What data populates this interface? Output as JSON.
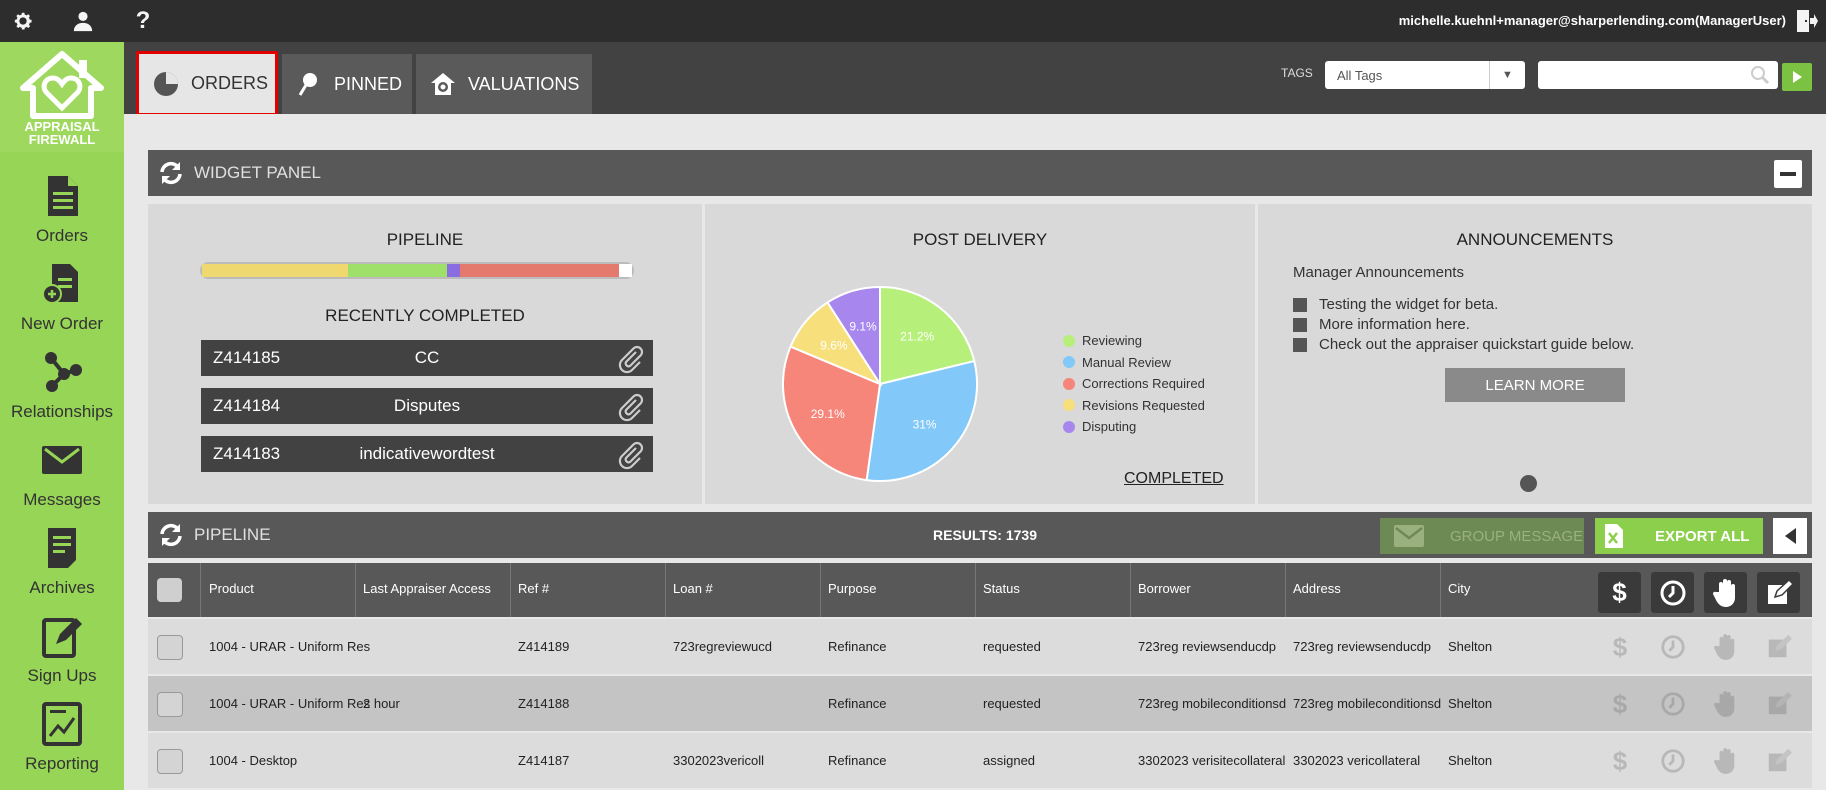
{
  "topbar": {
    "user": "michelle.kuehnl+manager@sharperlending.com(ManagerUser)",
    "icons": [
      "gear-icon",
      "user-icon",
      "help-icon",
      "logout-icon"
    ]
  },
  "logo": {
    "line1": "APPRAISAL",
    "line2": "FIREWALL"
  },
  "sidebar": {
    "items": [
      {
        "label": "Orders",
        "icon": "document-icon"
      },
      {
        "label": "New Order",
        "icon": "add-document-icon"
      },
      {
        "label": "Relationships",
        "icon": "relationships-icon"
      },
      {
        "label": "Messages",
        "icon": "envelope-icon"
      },
      {
        "label": "Archives",
        "icon": "archive-icon"
      },
      {
        "label": "Sign Ups",
        "icon": "signup-icon"
      },
      {
        "label": "Reporting",
        "icon": "chart-icon"
      }
    ]
  },
  "tabs": [
    {
      "label": "ORDERS",
      "icon": "pie-chart-icon",
      "active": true
    },
    {
      "label": "PINNED",
      "icon": "pin-icon",
      "active": false
    },
    {
      "label": "VALUATIONS",
      "icon": "house-gear-icon",
      "active": false
    }
  ],
  "filters": {
    "tags_label": "TAGS",
    "tags_value": "All Tags",
    "search_value": ""
  },
  "widget_panel": {
    "title": "WIDGET PANEL"
  },
  "pipeline_widget": {
    "title": "PIPELINE",
    "progress": [
      {
        "color": "#f0d870",
        "fraction": 0.34
      },
      {
        "color": "#9fe06a",
        "fraction": 0.23
      },
      {
        "color": "#8a6de0",
        "fraction": 0.03
      },
      {
        "color": "#e47a6d",
        "fraction": 0.37
      },
      {
        "color": "#ffffff",
        "fraction": 0.03
      }
    ],
    "recently_completed_title": "RECENTLY COMPLETED",
    "recent": [
      {
        "id": "Z414185",
        "name": "CC"
      },
      {
        "id": "Z414184",
        "name": "Disputes"
      },
      {
        "id": "Z414183",
        "name": "indicativewordtest"
      }
    ]
  },
  "post_delivery": {
    "title": "POST DELIVERY",
    "completed_link": "COMPLETED",
    "slices": [
      {
        "label": "Reviewing",
        "value": 21.2,
        "text": "21.2%",
        "color": "#b6f07a"
      },
      {
        "label": "Manual Review",
        "value": 31,
        "text": "31%",
        "color": "#82c8f8"
      },
      {
        "label": "Corrections Required",
        "value": 29.1,
        "text": "29.1%",
        "color": "#f6857a"
      },
      {
        "label": "Revisions Requested",
        "value": 9.6,
        "text": "9.6%",
        "color": "#f7e07c"
      },
      {
        "label": "Disputing",
        "value": 9.1,
        "text": "9.1%",
        "color": "#a787ee"
      }
    ]
  },
  "announcements": {
    "title": "ANNOUNCEMENTS",
    "subtitle": "Manager Announcements",
    "items": [
      "Testing the widget for beta.",
      "More information here.",
      "Check out the appraiser quickstart guide below."
    ],
    "button": "LEARN MORE"
  },
  "pipeline_table": {
    "title": "PIPELINE",
    "results": "RESULTS: 1739",
    "group_message": "GROUP MESSAGE",
    "export_all": "EXPORT ALL",
    "columns": [
      "Product",
      "Last Appraiser Access",
      "Ref #",
      "Loan #",
      "Purpose",
      "Status",
      "Borrower",
      "Address",
      "City"
    ],
    "rows": [
      {
        "product": "1004 - URAR - Uniform Res",
        "access": "",
        "ref": "Z414189",
        "loan": "723regreviewucd",
        "purpose": "Refinance",
        "status": "requested",
        "borrower": "723reg reviewsenducdp",
        "address": "723reg reviewsenducdp",
        "city": "Shelton"
      },
      {
        "product": "1004 - URAR - Uniform Res",
        "access": "2 hour",
        "ref": "Z414188",
        "loan": "",
        "purpose": "Refinance",
        "status": "requested",
        "borrower": "723reg mobileconditionsd",
        "address": "723reg mobileconditionsd",
        "city": "Shelton"
      },
      {
        "product": "1004 - Desktop",
        "access": "",
        "ref": "Z414187",
        "loan": "3302023vericoll",
        "purpose": "Refinance",
        "status": "assigned",
        "borrower": "3302023 verisitecollateral",
        "address": "3302023 vericollateral",
        "city": "Shelton"
      }
    ]
  }
}
